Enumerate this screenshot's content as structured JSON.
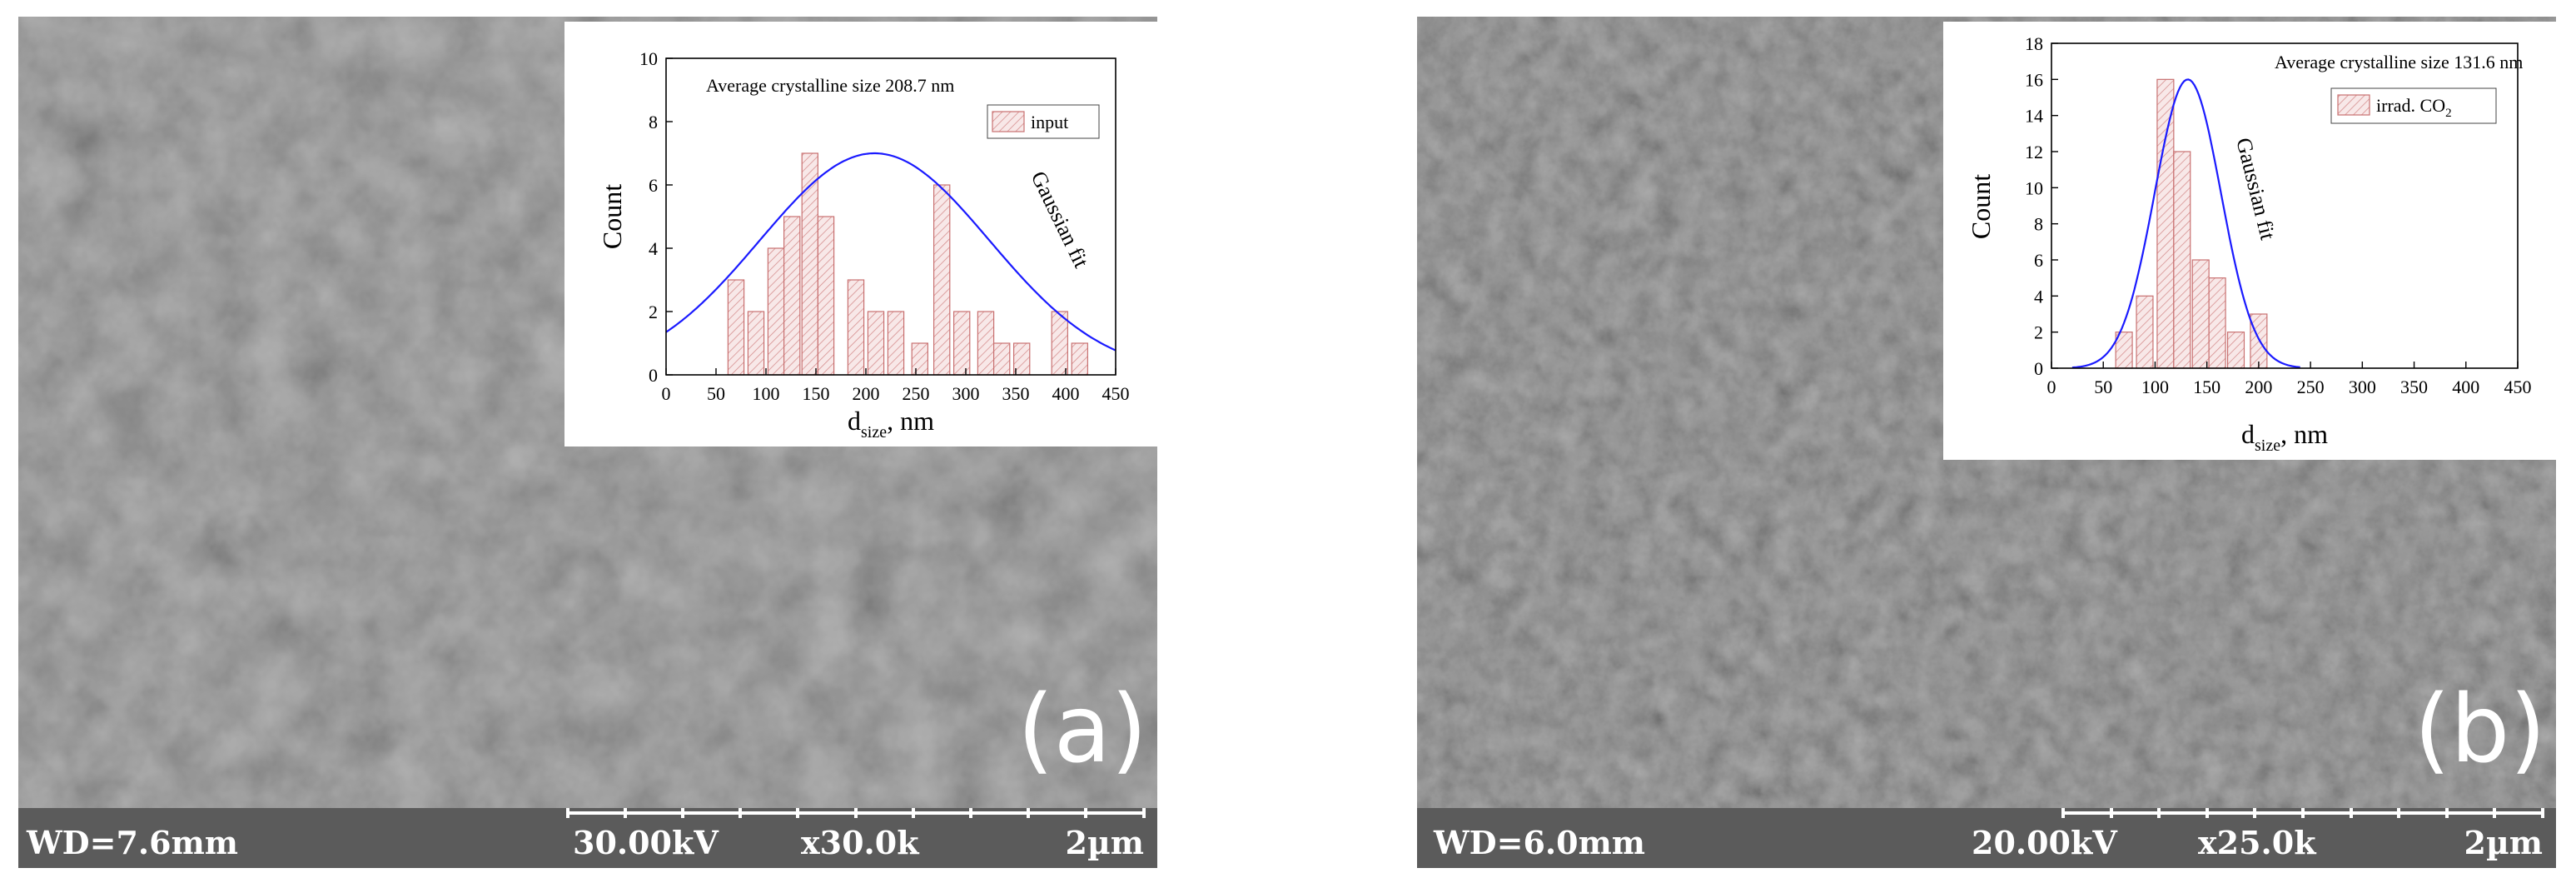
{
  "panels": [
    {
      "id": "a",
      "label": "(a)",
      "wd": "WD=7.6mm",
      "voltage": "30.00kV",
      "magnification": "x30.0k",
      "scalebar": "2µm",
      "surface_color": "#7c7c7c"
    },
    {
      "id": "b",
      "label": "(b)",
      "wd": "WD=6.0mm",
      "voltage": "20.00kV",
      "magnification": "x25.0k",
      "scalebar": "2µm",
      "surface_color": "#737373"
    }
  ],
  "chart_data": [
    {
      "type": "bar",
      "annotation": "Average crystalline size 208.7 nm",
      "legend": "input",
      "fit_label": "Gaussian fit",
      "xlabel": "d",
      "xlabel_sub": "size",
      "xlabel_unit": ", nm",
      "ylabel": "Count",
      "xlim": [
        0,
        450
      ],
      "ylim": [
        0,
        10
      ],
      "xticks": [
        0,
        50,
        100,
        150,
        200,
        250,
        300,
        350,
        400,
        450
      ],
      "yticks": [
        0,
        2,
        4,
        6,
        8,
        10
      ],
      "bin_width": 16,
      "x": [
        70,
        90,
        110,
        126,
        144,
        160,
        190,
        210,
        230,
        254,
        276,
        296,
        320,
        336,
        356,
        394,
        414
      ],
      "values": [
        3,
        2,
        4,
        5,
        7,
        5,
        3,
        2,
        2,
        1,
        6,
        2,
        2,
        1,
        1,
        2,
        1
      ],
      "gaussian": {
        "center": 208.7,
        "amplitude": 7.0,
        "sigma": 115
      },
      "bar_fill": "#f8e8e8",
      "bar_stroke": "#c87070",
      "fit_color": "#1a1aff"
    },
    {
      "type": "bar",
      "annotation": "Average crystalline size 131.6 nm",
      "legend": "irrad. CO",
      "legend_sub": "2",
      "fit_label": "Gaussian fit",
      "xlabel": "d",
      "xlabel_sub": "size",
      "xlabel_unit": ", nm",
      "ylabel": "Count",
      "xlim": [
        0,
        450
      ],
      "ylim": [
        0,
        18
      ],
      "xticks": [
        0,
        50,
        100,
        150,
        200,
        250,
        300,
        350,
        400,
        450
      ],
      "yticks": [
        0,
        2,
        4,
        6,
        8,
        10,
        12,
        14,
        16,
        18
      ],
      "bin_width": 16,
      "x": [
        70,
        90,
        110,
        126,
        144,
        160,
        178,
        200
      ],
      "values": [
        2,
        4,
        16,
        12,
        6,
        5,
        2,
        3
      ],
      "gaussian": {
        "center": 131.6,
        "amplitude": 16.0,
        "sigma": 32
      },
      "bar_fill": "#f8e8e8",
      "bar_stroke": "#c87070",
      "fit_color": "#1a1aff"
    }
  ]
}
